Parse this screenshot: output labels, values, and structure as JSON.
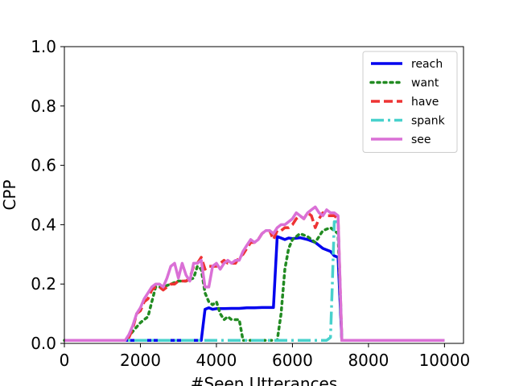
{
  "chart_data": {
    "type": "line",
    "title": "",
    "xlabel": "#Seen Utterances",
    "ylabel": "CPP",
    "xlim": [
      0,
      10500
    ],
    "ylim": [
      0,
      1.0
    ],
    "xticks": [
      0,
      2000,
      4000,
      6000,
      8000,
      10000
    ],
    "xtick_labels": [
      "0",
      "2000",
      "4000",
      "6000",
      "8000",
      "10000"
    ],
    "yticks": [
      0.0,
      0.2,
      0.4,
      0.6,
      0.8,
      1.0
    ],
    "ytick_labels": [
      "0.0",
      "0.2",
      "0.4",
      "0.6",
      "0.8",
      "1.0"
    ],
    "grid": false,
    "legend_position": "top-right",
    "series": [
      {
        "name": "reach",
        "color": "#0000ee",
        "dash": "solid",
        "x": [
          0,
          3600,
          3700,
          3800,
          3900,
          4000,
          4200,
          4400,
          4600,
          4800,
          5000,
          5200,
          5400,
          5500,
          5600,
          5700,
          5800,
          5900,
          6000,
          6200,
          6400,
          6600,
          6800,
          7000,
          7100,
          7200,
          7300,
          7400,
          8000,
          10000
        ],
        "y": [
          0.01,
          0.01,
          0.115,
          0.12,
          0.115,
          0.117,
          0.117,
          0.118,
          0.118,
          0.12,
          0.12,
          0.121,
          0.121,
          0.121,
          0.36,
          0.355,
          0.35,
          0.355,
          0.353,
          0.356,
          0.35,
          0.34,
          0.32,
          0.31,
          0.295,
          0.29,
          0.01,
          0.01,
          0.01,
          0.01
        ]
      },
      {
        "name": "want",
        "color": "#228b22",
        "dash": "dotted",
        "x": [
          0,
          1600,
          1800,
          2000,
          2200,
          2400,
          2600,
          2800,
          3000,
          3200,
          3400,
          3500,
          3600,
          3700,
          3800,
          3900,
          4000,
          4100,
          4200,
          4300,
          4400,
          4500,
          4600,
          4700,
          4800,
          5000,
          5200,
          5400,
          5600,
          5700,
          5800,
          5900,
          6000,
          6200,
          6400,
          6600,
          6800,
          7000,
          7100,
          7200,
          7300,
          7400,
          10000
        ],
        "y": [
          0.01,
          0.01,
          0.04,
          0.07,
          0.09,
          0.19,
          0.19,
          0.2,
          0.21,
          0.21,
          0.22,
          0.26,
          0.25,
          0.17,
          0.14,
          0.13,
          0.14,
          0.1,
          0.08,
          0.09,
          0.08,
          0.08,
          0.08,
          0.01,
          0.01,
          0.01,
          0.01,
          0.01,
          0.01,
          0.1,
          0.25,
          0.32,
          0.35,
          0.37,
          0.36,
          0.34,
          0.38,
          0.39,
          0.38,
          0.37,
          0.01,
          0.01,
          0.01
        ]
      },
      {
        "name": "have",
        "color": "#ee3333",
        "dash": "dashed",
        "x": [
          0,
          1600,
          1700,
          1800,
          1900,
          2000,
          2100,
          2200,
          2300,
          2400,
          2500,
          2600,
          2700,
          2800,
          2900,
          3000,
          3100,
          3200,
          3300,
          3400,
          3500,
          3600,
          3700,
          3800,
          3900,
          4000,
          4100,
          4200,
          4300,
          4400,
          4500,
          4600,
          4700,
          4800,
          4900,
          5000,
          5100,
          5200,
          5300,
          5400,
          5500,
          5600,
          5700,
          5800,
          5900,
          6000,
          6100,
          6200,
          6300,
          6400,
          6500,
          6600,
          6700,
          6800,
          6900,
          7000,
          7100,
          7200,
          7300,
          7400,
          10000
        ],
        "y": [
          0.01,
          0.01,
          0.02,
          0.05,
          0.1,
          0.11,
          0.14,
          0.15,
          0.18,
          0.19,
          0.19,
          0.18,
          0.19,
          0.2,
          0.2,
          0.21,
          0.21,
          0.21,
          0.22,
          0.26,
          0.27,
          0.29,
          0.25,
          0.26,
          0.26,
          0.26,
          0.27,
          0.28,
          0.27,
          0.27,
          0.27,
          0.29,
          0.3,
          0.32,
          0.34,
          0.34,
          0.35,
          0.37,
          0.38,
          0.38,
          0.35,
          0.38,
          0.38,
          0.39,
          0.39,
          0.4,
          0.42,
          0.43,
          0.42,
          0.44,
          0.43,
          0.39,
          0.42,
          0.44,
          0.43,
          0.43,
          0.43,
          0.42,
          0.01,
          0.01,
          0.01
        ]
      },
      {
        "name": "spank",
        "color": "#48d1cc",
        "dash": "dashdot",
        "x": [
          0,
          6900,
          7000,
          7050,
          7100,
          7200,
          7250,
          7300,
          10000
        ],
        "y": [
          0.01,
          0.01,
          0.02,
          0.2,
          0.41,
          0.41,
          0.2,
          0.01,
          0.01
        ]
      },
      {
        "name": "see",
        "color": "#da70d6",
        "dash": "solid",
        "x": [
          0,
          1600,
          1700,
          1800,
          1900,
          2000,
          2100,
          2200,
          2300,
          2400,
          2500,
          2600,
          2700,
          2800,
          2900,
          3000,
          3100,
          3200,
          3300,
          3400,
          3500,
          3600,
          3700,
          3800,
          3900,
          4000,
          4100,
          4200,
          4300,
          4400,
          4500,
          4600,
          4700,
          4800,
          4900,
          5000,
          5100,
          5200,
          5300,
          5400,
          5500,
          5600,
          5700,
          5800,
          5900,
          6000,
          6100,
          6200,
          6300,
          6400,
          6500,
          6600,
          6700,
          6800,
          6900,
          7000,
          7100,
          7200,
          7300,
          7400,
          10000
        ],
        "y": [
          0.01,
          0.01,
          0.03,
          0.06,
          0.1,
          0.12,
          0.15,
          0.17,
          0.19,
          0.2,
          0.2,
          0.19,
          0.22,
          0.26,
          0.27,
          0.22,
          0.27,
          0.23,
          0.21,
          0.27,
          0.27,
          0.28,
          0.19,
          0.19,
          0.26,
          0.27,
          0.25,
          0.27,
          0.28,
          0.27,
          0.28,
          0.28,
          0.31,
          0.33,
          0.35,
          0.34,
          0.35,
          0.37,
          0.38,
          0.38,
          0.37,
          0.39,
          0.4,
          0.4,
          0.41,
          0.42,
          0.44,
          0.43,
          0.42,
          0.44,
          0.45,
          0.46,
          0.44,
          0.43,
          0.45,
          0.44,
          0.44,
          0.43,
          0.01,
          0.01,
          0.01
        ]
      }
    ]
  }
}
